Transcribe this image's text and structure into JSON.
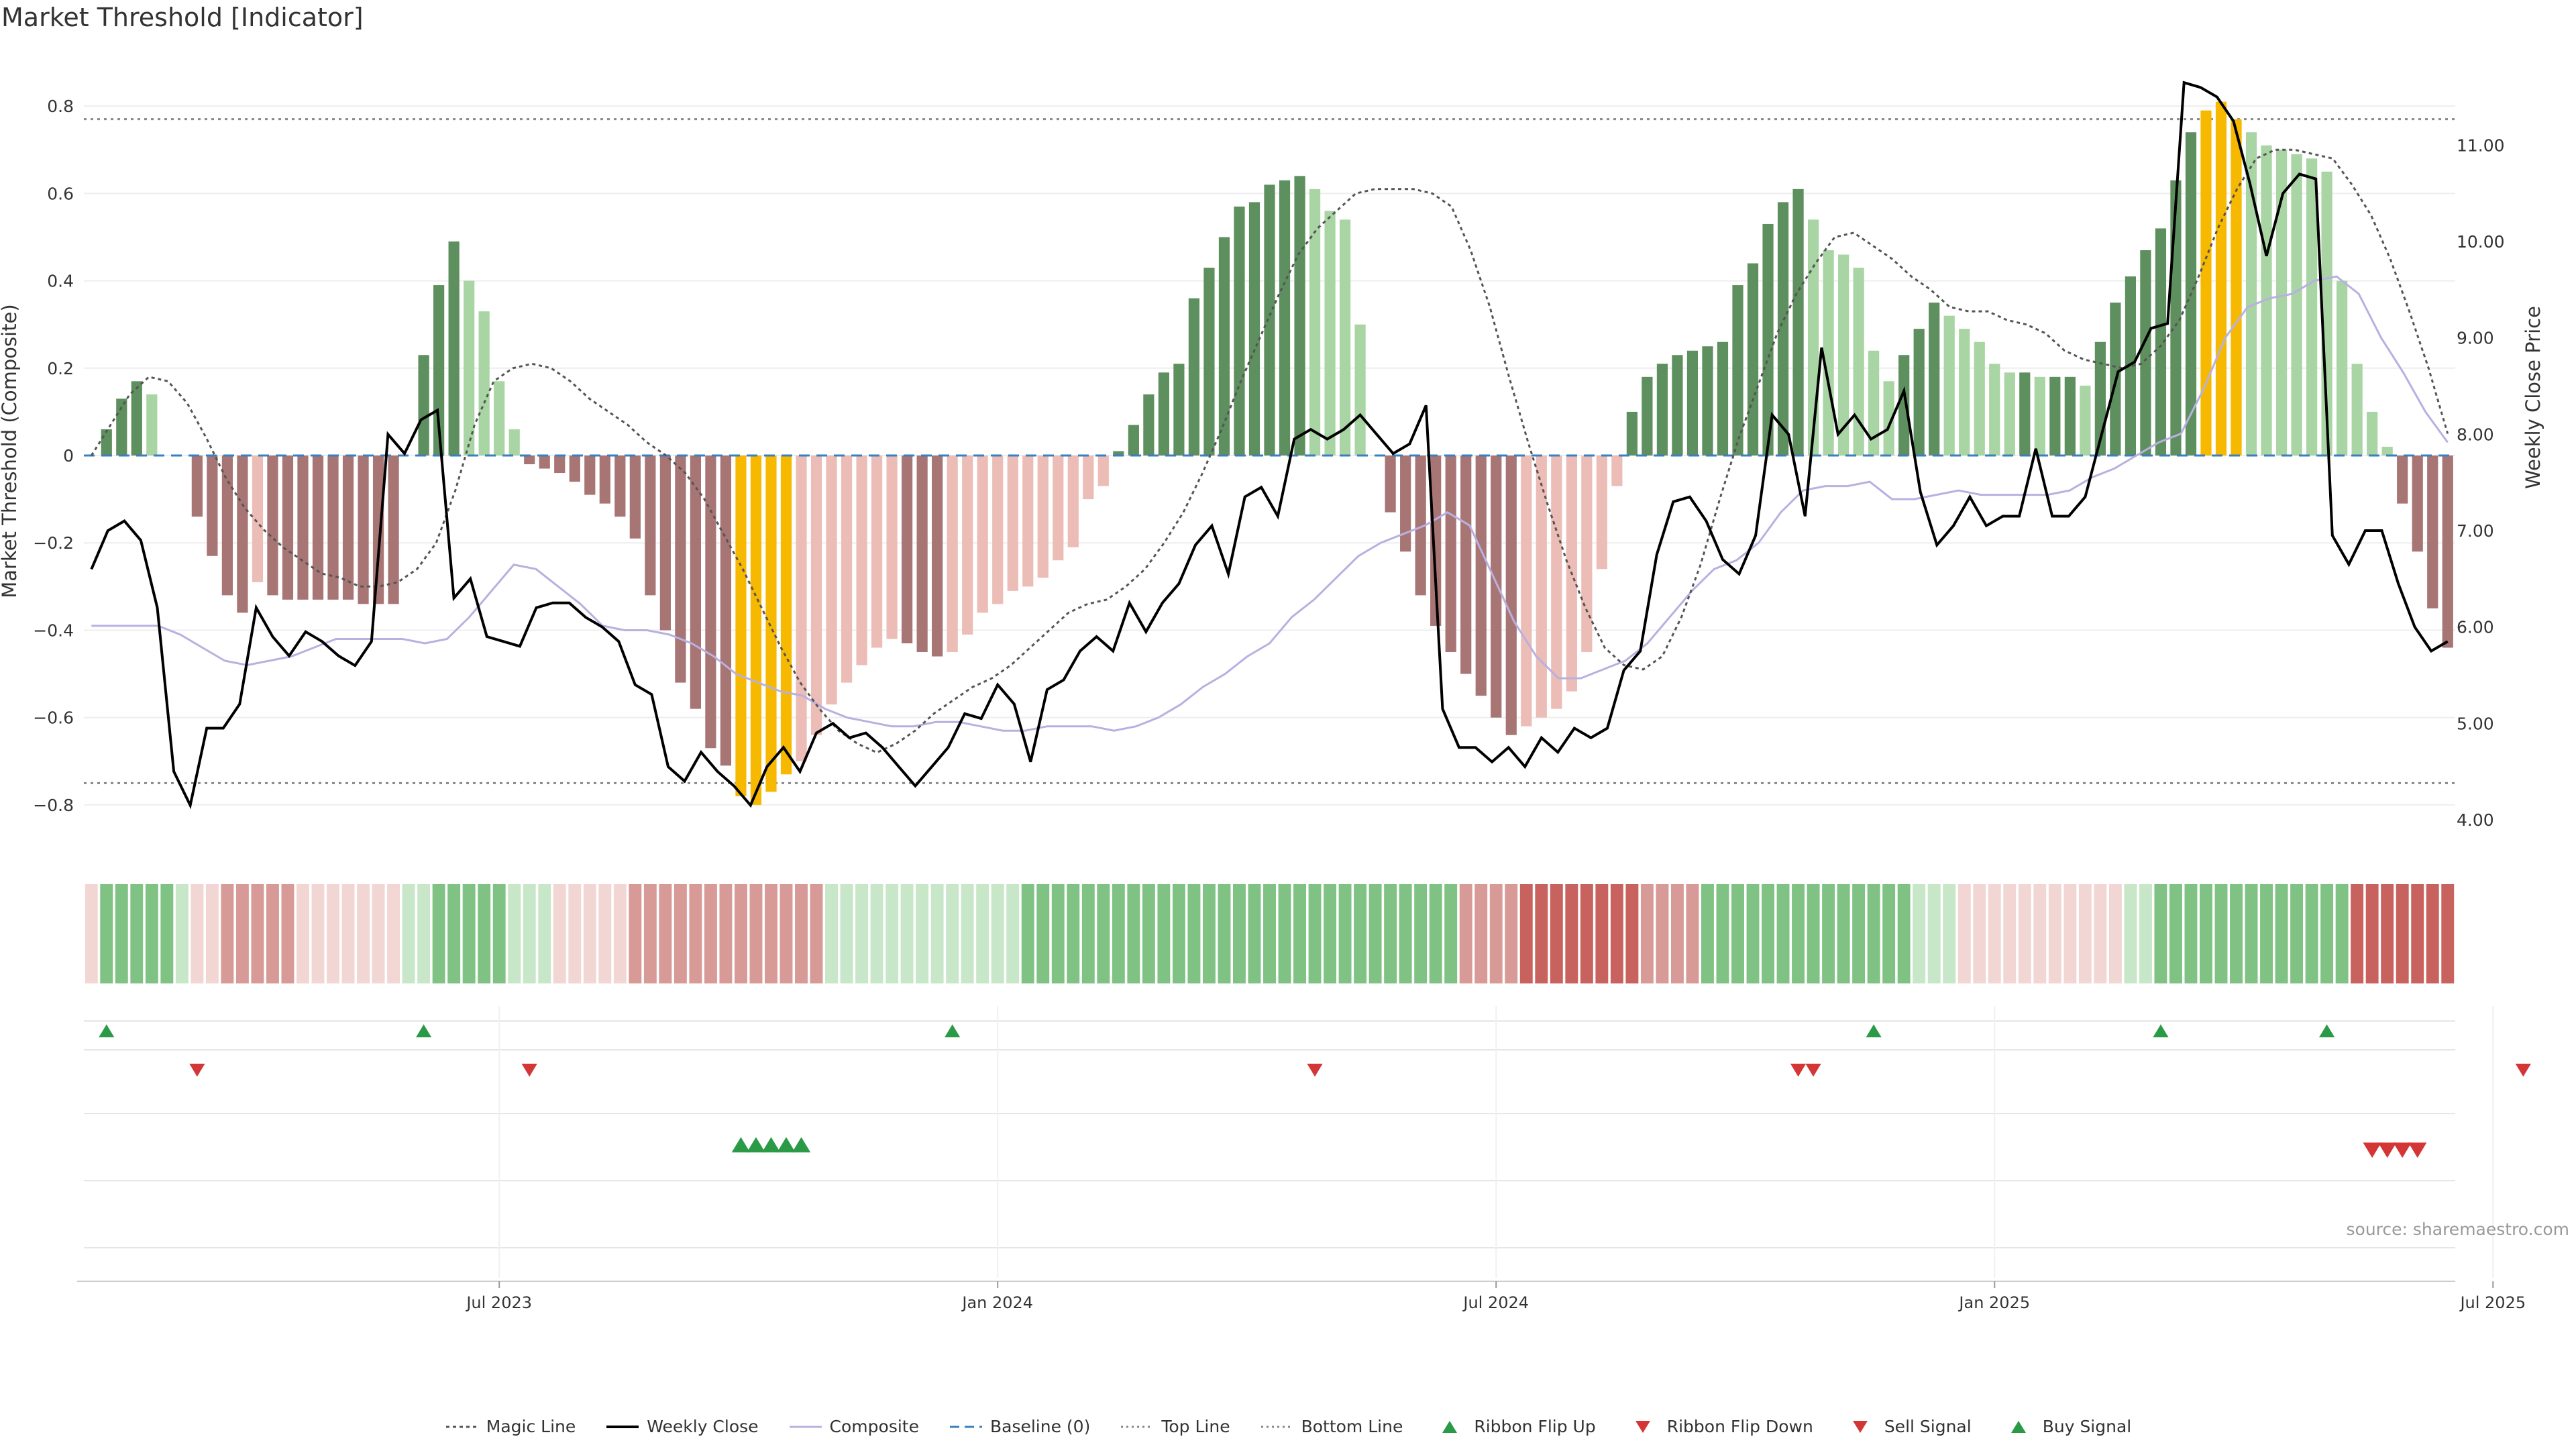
{
  "page_title": "Market Threshold [Indicator]",
  "source_text": "source: sharemaestro.com",
  "colors": {
    "bull_strong": "#5e8f5e",
    "bull_weak": "#a8d5a3",
    "bear_strong": "#a87575",
    "bear_weak": "#ebbdb6",
    "extreme": "#f7b900",
    "close_line": "#000000",
    "magic_line": "#555555",
    "composite_line": "#b9b0e0",
    "baseline": "#3a7fbf",
    "threshold_line": "#888888",
    "signal_up": "#2a9a47",
    "signal_down": "#d43535"
  },
  "legend": [
    {
      "label": "Magic Line",
      "icon": "dotted-line-icon"
    },
    {
      "label": "Weekly Close",
      "icon": "solid-line-icon"
    },
    {
      "label": "Composite",
      "icon": "light-line-icon"
    },
    {
      "label": "Baseline (0)",
      "icon": "dashed-line-icon"
    },
    {
      "label": "Top Line",
      "icon": "dotted-line-icon"
    },
    {
      "label": "Bottom Line",
      "icon": "dotted-line-icon"
    },
    {
      "label": "Ribbon Flip Up",
      "icon": "triangle-up-icon"
    },
    {
      "label": "Ribbon Flip Down",
      "icon": "triangle-down-icon"
    },
    {
      "label": "Sell Signal",
      "icon": "triangle-down-icon"
    },
    {
      "label": "Buy Signal",
      "icon": "triangle-up-icon"
    }
  ],
  "chart_data": {
    "type": "bar",
    "title": "Market Threshold [Indicator]",
    "ylabel": "Market Threshold (Composite)",
    "y2label": "Weekly Close Price",
    "ylim": [
      -0.9,
      0.92
    ],
    "y2lim": [
      3.7,
      11.95
    ],
    "yticks": [
      -0.8,
      -0.6,
      -0.4,
      -0.2,
      0,
      0.2,
      0.4,
      0.6,
      0.8
    ],
    "ytick_labels": [
      "−0.8",
      "−0.6",
      "−0.4",
      "−0.2",
      "0",
      "0.2",
      "0.4",
      "0.6",
      "0.8"
    ],
    "y2ticks": [
      4,
      5,
      6,
      7,
      8,
      9,
      10,
      11
    ],
    "y2tick_labels": [
      "4.00",
      "5.00",
      "6.00",
      "7.00",
      "8.00",
      "9.00",
      "10.00",
      "11.00"
    ],
    "xticks": [
      {
        "index": 27,
        "label": "Jul 2023"
      },
      {
        "index": 60,
        "label": "Jan 2024"
      },
      {
        "index": 93,
        "label": "Jul 2024"
      },
      {
        "index": 126,
        "label": "Jan 2025"
      },
      {
        "index": 159,
        "label": "Jul 2025"
      }
    ],
    "top_line": 0.77,
    "bottom_line": -0.75,
    "baseline": 0,
    "bars": [
      0.0,
      0.06,
      0.13,
      0.17,
      0.14,
      0.0,
      0.0,
      -0.14,
      -0.23,
      -0.32,
      -0.36,
      -0.29,
      -0.32,
      -0.33,
      -0.33,
      -0.33,
      -0.33,
      -0.33,
      -0.34,
      -0.34,
      -0.34,
      0.0,
      0.23,
      0.39,
      0.49,
      0.4,
      0.33,
      0.17,
      0.06,
      -0.02,
      -0.03,
      -0.04,
      -0.06,
      -0.09,
      -0.11,
      -0.14,
      -0.19,
      -0.32,
      -0.4,
      -0.52,
      -0.58,
      -0.67,
      -0.71,
      -0.78,
      -0.8,
      -0.77,
      -0.73,
      -0.7,
      -0.64,
      -0.57,
      -0.52,
      -0.48,
      -0.44,
      -0.42,
      -0.43,
      -0.45,
      -0.46,
      -0.45,
      -0.41,
      -0.36,
      -0.34,
      -0.31,
      -0.3,
      -0.28,
      -0.24,
      -0.21,
      -0.1,
      -0.07,
      0.01,
      0.07,
      0.14,
      0.19,
      0.21,
      0.36,
      0.43,
      0.5,
      0.57,
      0.58,
      0.62,
      0.63,
      0.64,
      0.61,
      0.56,
      0.54,
      0.3,
      0.0,
      -0.13,
      -0.22,
      -0.32,
      -0.39,
      -0.45,
      -0.5,
      -0.55,
      -0.6,
      -0.64,
      -0.62,
      -0.6,
      -0.58,
      -0.54,
      -0.45,
      -0.26,
      -0.07,
      0.1,
      0.18,
      0.21,
      0.23,
      0.24,
      0.25,
      0.26,
      0.39,
      0.44,
      0.53,
      0.58,
      0.61,
      0.54,
      0.47,
      0.46,
      0.43,
      0.24,
      0.17,
      0.23,
      0.29,
      0.35,
      0.32,
      0.29,
      0.26,
      0.21,
      0.19,
      0.19,
      0.18,
      0.18,
      0.18,
      0.16,
      0.26,
      0.35,
      0.41,
      0.47,
      0.52,
      0.63,
      0.74,
      0.79,
      0.81,
      0.77,
      0.74,
      0.71,
      0.7,
      0.69,
      0.68,
      0.65,
      0.4,
      0.21,
      0.1,
      0.02,
      -0.11,
      -0.22,
      -0.35,
      -0.44
    ],
    "close": [
      6.6,
      7.0,
      7.1,
      6.9,
      6.2,
      4.5,
      4.15,
      4.95,
      4.95,
      5.2,
      6.2,
      5.9,
      5.7,
      5.95,
      5.85,
      5.7,
      5.6,
      5.85,
      8.0,
      7.8,
      8.15,
      8.25,
      6.3,
      6.5,
      5.9,
      5.85,
      5.8,
      6.2,
      6.25,
      6.25,
      6.1,
      6.0,
      5.85,
      5.4,
      5.3,
      4.55,
      4.4,
      4.7,
      4.5,
      4.35,
      4.15,
      4.55,
      4.75,
      4.5,
      4.9,
      5.0,
      4.85,
      4.9,
      4.75,
      4.55,
      4.35,
      4.55,
      4.75,
      5.1,
      5.05,
      5.4,
      5.2,
      4.6,
      5.35,
      5.45,
      5.75,
      5.9,
      5.75,
      6.25,
      5.95,
      6.25,
      6.45,
      6.85,
      7.05,
      6.55,
      7.35,
      7.45,
      7.15,
      7.95,
      8.05,
      7.95,
      8.05,
      8.2,
      8.0,
      7.8,
      7.9,
      8.3,
      5.15,
      4.75,
      4.75,
      4.6,
      4.75,
      4.55,
      4.85,
      4.7,
      4.95,
      4.85,
      4.95,
      5.55,
      5.75,
      6.75,
      7.3,
      7.35,
      7.1,
      6.7,
      6.55,
      6.95,
      8.2,
      8.0,
      7.15,
      8.9,
      8.0,
      8.2,
      7.95,
      8.05,
      8.45,
      7.4,
      6.85,
      7.05,
      7.35,
      7.05,
      7.15,
      7.15,
      7.85,
      7.15,
      7.15,
      7.35,
      8.0,
      8.65,
      8.75,
      9.1,
      9.15,
      11.65,
      11.6,
      11.5,
      11.25,
      10.6,
      9.85,
      10.5,
      10.7,
      10.65,
      6.95,
      6.65,
      7.0,
      7.0,
      6.45,
      6.0,
      5.75,
      5.85
    ],
    "magic": [
      0.0,
      0.07,
      0.14,
      0.18,
      0.17,
      0.12,
      0.04,
      -0.05,
      -0.12,
      -0.17,
      -0.21,
      -0.24,
      -0.27,
      -0.28,
      -0.3,
      -0.3,
      -0.29,
      -0.26,
      -0.2,
      -0.08,
      0.07,
      0.17,
      0.2,
      0.21,
      0.2,
      0.17,
      0.13,
      0.1,
      0.07,
      0.03,
      0.0,
      -0.04,
      -0.1,
      -0.18,
      -0.26,
      -0.35,
      -0.44,
      -0.52,
      -0.58,
      -0.63,
      -0.66,
      -0.68,
      -0.66,
      -0.63,
      -0.59,
      -0.56,
      -0.53,
      -0.51,
      -0.48,
      -0.44,
      -0.4,
      -0.36,
      -0.34,
      -0.33,
      -0.3,
      -0.26,
      -0.2,
      -0.13,
      -0.04,
      0.06,
      0.17,
      0.27,
      0.37,
      0.46,
      0.52,
      0.56,
      0.6,
      0.61,
      0.61,
      0.61,
      0.6,
      0.57,
      0.47,
      0.34,
      0.18,
      0.03,
      -0.11,
      -0.24,
      -0.35,
      -0.44,
      -0.48,
      -0.49,
      -0.46,
      -0.37,
      -0.25,
      -0.1,
      0.04,
      0.16,
      0.28,
      0.37,
      0.44,
      0.5,
      0.51,
      0.48,
      0.45,
      0.41,
      0.38,
      0.34,
      0.33,
      0.33,
      0.31,
      0.3,
      0.28,
      0.24,
      0.22,
      0.21,
      0.2,
      0.21,
      0.25,
      0.31,
      0.41,
      0.52,
      0.61,
      0.68,
      0.7,
      0.7,
      0.69,
      0.68,
      0.62,
      0.55,
      0.45,
      0.33,
      0.2,
      0.05
    ],
    "composite": [
      -0.39,
      -0.39,
      -0.39,
      -0.39,
      -0.41,
      -0.44,
      -0.47,
      -0.48,
      -0.47,
      -0.46,
      -0.44,
      -0.42,
      -0.42,
      -0.42,
      -0.42,
      -0.43,
      -0.42,
      -0.37,
      -0.31,
      -0.25,
      -0.26,
      -0.3,
      -0.34,
      -0.39,
      -0.4,
      -0.4,
      -0.41,
      -0.43,
      -0.46,
      -0.5,
      -0.52,
      -0.54,
      -0.55,
      -0.58,
      -0.6,
      -0.61,
      -0.62,
      -0.62,
      -0.61,
      -0.61,
      -0.62,
      -0.63,
      -0.63,
      -0.62,
      -0.62,
      -0.62,
      -0.63,
      -0.62,
      -0.6,
      -0.57,
      -0.53,
      -0.5,
      -0.46,
      -0.43,
      -0.37,
      -0.33,
      -0.28,
      -0.23,
      -0.2,
      -0.18,
      -0.16,
      -0.13,
      -0.16,
      -0.27,
      -0.38,
      -0.46,
      -0.51,
      -0.51,
      -0.49,
      -0.47,
      -0.43,
      -0.37,
      -0.31,
      -0.26,
      -0.24,
      -0.2,
      -0.13,
      -0.08,
      -0.07,
      -0.07,
      -0.06,
      -0.1,
      -0.1,
      -0.09,
      -0.08,
      -0.09,
      -0.09,
      -0.09,
      -0.09,
      -0.08,
      -0.05,
      -0.03,
      0.0,
      0.03,
      0.05,
      0.15,
      0.27,
      0.34,
      0.36,
      0.37,
      0.4,
      0.41,
      0.37,
      0.27,
      0.19,
      0.1,
      0.03
    ],
    "ribbon": [
      -1,
      2,
      2,
      2,
      2,
      2,
      1,
      -1,
      -1,
      -2,
      -2,
      -2,
      -2,
      -2,
      -1,
      -1,
      -1,
      -1,
      -1,
      -1,
      -1,
      1,
      1,
      2,
      2,
      2,
      2,
      2,
      1,
      1,
      1,
      -1,
      -1,
      -1,
      -1,
      -1,
      -2,
      -2,
      -2,
      -2,
      -2,
      -2,
      -2,
      -2,
      -2,
      -2,
      -2,
      -2,
      -2,
      1,
      1,
      1,
      1,
      1,
      1,
      1,
      1,
      1,
      1,
      1,
      1,
      1,
      2,
      2,
      2,
      2,
      2,
      2,
      2,
      2,
      2,
      2,
      2,
      2,
      2,
      2,
      2,
      2,
      2,
      2,
      2,
      2,
      2,
      2,
      2,
      2,
      2,
      2,
      2,
      2,
      2,
      -2,
      -2,
      -2,
      -2,
      -3,
      -3,
      -3,
      -3,
      -3,
      -3,
      -3,
      -3,
      -2,
      -2,
      -2,
      -2,
      2,
      2,
      2,
      2,
      2,
      2,
      2,
      2,
      2,
      2,
      2,
      2,
      2,
      2,
      1,
      1,
      1,
      -1,
      -1,
      -1,
      -1,
      -1,
      -1,
      -1,
      -1,
      -1,
      -1,
      -1,
      1,
      1,
      2,
      2,
      2,
      2,
      2,
      2,
      2,
      2,
      2,
      2,
      2,
      2,
      2,
      -3,
      -3,
      -3,
      -3,
      -3,
      -3,
      -3
    ],
    "ribbon_flip_up": [
      1,
      22,
      57,
      118,
      137,
      148
    ],
    "ribbon_flip_down": [
      7,
      29,
      81,
      113,
      114,
      161
    ],
    "buy_signal": [
      43,
      44,
      45,
      46,
      47
    ],
    "sell_signal": [
      151,
      152,
      153,
      154
    ]
  }
}
